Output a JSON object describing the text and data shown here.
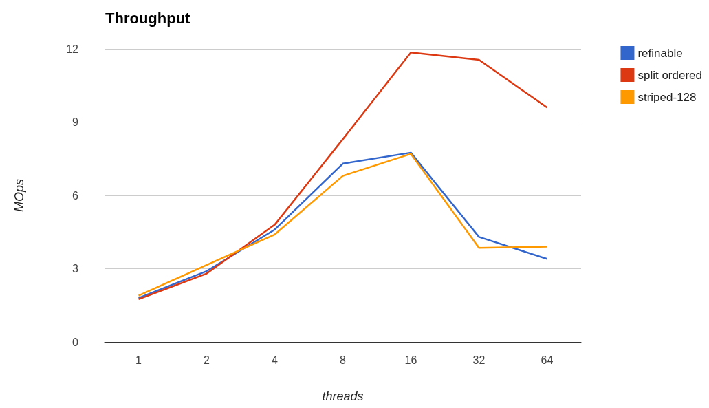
{
  "chart_data": {
    "type": "line",
    "title": "Throughput",
    "xlabel": "threads",
    "ylabel": "MOps",
    "categories": [
      "1",
      "2",
      "4",
      "8",
      "16",
      "32",
      "64"
    ],
    "series": [
      {
        "name": "refinable",
        "color": "#3366cc",
        "values": [
          1.8,
          2.9,
          4.6,
          7.3,
          7.75,
          4.3,
          3.4
        ]
      },
      {
        "name": "split ordered",
        "color": "#dc3912",
        "values": [
          1.75,
          2.8,
          4.8,
          8.3,
          11.85,
          11.55,
          9.6
        ]
      },
      {
        "name": "striped-128",
        "color": "#ff9900",
        "values": [
          1.9,
          3.15,
          4.4,
          6.8,
          7.7,
          3.85,
          3.9
        ]
      }
    ],
    "ylim": [
      0,
      12
    ],
    "yticks": [
      0,
      3,
      6,
      9,
      12
    ],
    "grid": "y",
    "legend": "right",
    "marker": "none",
    "line_style": "solid"
  }
}
